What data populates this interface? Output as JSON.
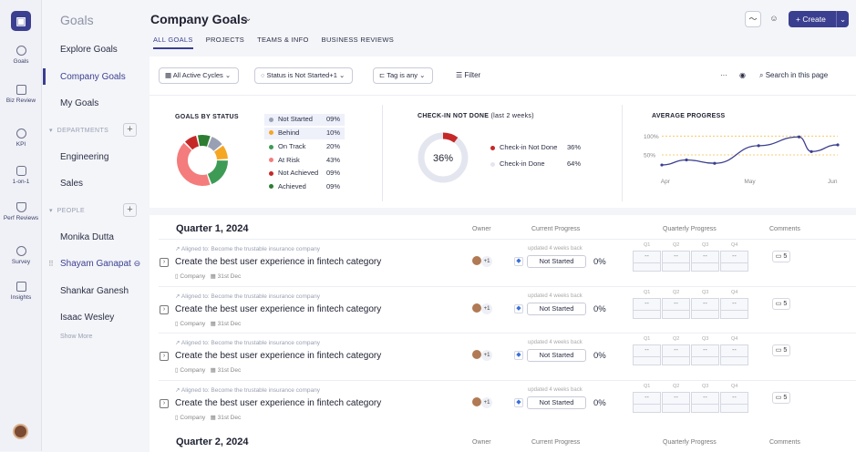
{
  "rail": {
    "logo_glyph": "▣",
    "items": [
      {
        "label": "Goals",
        "icon": "goals-icon"
      },
      {
        "label": "Biz Review",
        "icon": "biz-review-icon"
      },
      {
        "label": "KPI",
        "icon": "kpi-icon"
      },
      {
        "label": "1-on-1",
        "icon": "one-on-one-icon"
      },
      {
        "label": "Perf Reviews",
        "icon": "perf-reviews-icon"
      },
      {
        "label": "Survey",
        "icon": "survey-icon"
      },
      {
        "label": "Insights",
        "icon": "insights-icon"
      }
    ]
  },
  "sidebar": {
    "title": "Goals",
    "items": [
      "Explore Goals",
      "Company Goals",
      "My Goals"
    ],
    "departments_label": "DEPARTMENTS",
    "departments": [
      "Engineering",
      "Sales"
    ],
    "people_label": "PEOPLE",
    "people": [
      "Monika Dutta",
      "Shayam Ganapat",
      "Shankar Ganesh",
      "Isaac Wesley"
    ],
    "show_more": "Show More",
    "plus": "+"
  },
  "header": {
    "title": "Company Goals",
    "caret": "⌄",
    "tabs": [
      "ALL GOALS",
      "PROJECTS",
      "TEAMS & INFO",
      "BUSINESS REVIEWS"
    ],
    "create_label": "+ Create",
    "create_caret": "⌄"
  },
  "filters": {
    "cycles": "All Active Cycles ⌄",
    "status": "Status is Not Started+1 ⌄",
    "tag": "Tag is any ⌄",
    "filter": "Filter",
    "more": "···",
    "search": "Search in this page"
  },
  "goals_by_status": {
    "heading": "GOALS BY STATUS",
    "legend": [
      {
        "label": "Not Started",
        "value": "09%",
        "color": "#9aa0b3"
      },
      {
        "label": "Behind",
        "value": "10%",
        "color": "#f5a623"
      },
      {
        "label": "On Track",
        "value": "20%",
        "color": "#3e9b55"
      },
      {
        "label": "At Risk",
        "value": "43%",
        "color": "#f47c7c"
      },
      {
        "label": "Not Achieved",
        "value": "09%",
        "color": "#c62828"
      },
      {
        "label": "Achieved",
        "value": "09%",
        "color": "#2e7d32"
      }
    ]
  },
  "checkin": {
    "heading": "CHECK-IN NOT DONE",
    "subheading": "(last 2 weeks)",
    "center": "36%",
    "legend": [
      {
        "label": "Check-in Not Done",
        "value": "36%",
        "color": "#c62828"
      },
      {
        "label": "Check-in Done",
        "value": "64%",
        "color": "#e4e6ef"
      }
    ]
  },
  "chart_data": {
    "type": "line",
    "title": "AVERAGE PROGRESS",
    "y_tick_labels": [
      "100%",
      "50%"
    ],
    "x_tick_labels": [
      "Apr",
      "May",
      "Jun"
    ],
    "x": [
      0,
      0.14,
      0.3,
      0.55,
      0.78,
      0.85,
      1.0
    ],
    "values": [
      0.26,
      0.38,
      0.3,
      0.72,
      0.93,
      0.58,
      0.74
    ],
    "reference_lines": [
      0.95,
      0.5
    ],
    "color": "#3b3f8f",
    "reference_color": "#f5c04a"
  },
  "table": {
    "columns": {
      "owner": "Owner",
      "current_progress": "Current Progress",
      "quarterly_progress": "Quarterly Progress",
      "comments": "Comments"
    },
    "quarters": [
      "Q1",
      "Q2",
      "Q3",
      "Q4"
    ],
    "sections": [
      {
        "heading": "Quarter 1, 2024",
        "rows": [
          {
            "aligned": "Aligned to: Become the trustable insurance company",
            "title": "Create the best user experience in fintech category",
            "level": "Company",
            "date": "31st Dec",
            "owner_extra": "+1",
            "updated": "updated 4 weeks back",
            "status": "Not Started",
            "progress": "0%",
            "q": [
              "--",
              "--",
              "--",
              "--"
            ],
            "comments": "5"
          },
          {
            "aligned": "Aligned to: Become the trustable insurance company",
            "title": "Create the best user experience in fintech category",
            "level": "Company",
            "date": "31st Dec",
            "owner_extra": "+1",
            "updated": "updated 4 weeks back",
            "status": "Not Started",
            "progress": "0%",
            "q": [
              "--",
              "--",
              "--",
              "--"
            ],
            "comments": "5"
          },
          {
            "aligned": "Aligned to: Become the trustable insurance company",
            "title": "Create the best user experience in fintech category",
            "level": "Company",
            "date": "31st Dec",
            "owner_extra": "+1",
            "updated": "updated 4 weeks back",
            "status": "Not Started",
            "progress": "0%",
            "q": [
              "--",
              "--",
              "--",
              "--"
            ],
            "comments": "5"
          },
          {
            "aligned": "Aligned to: Become the trustable insurance company",
            "title": "Create the best user experience in fintech category",
            "level": "Company",
            "date": "31st Dec",
            "owner_extra": "+1",
            "updated": "updated 4 weeks back",
            "status": "Not Started",
            "progress": "0%",
            "q": [
              "--",
              "--",
              "--",
              "--"
            ],
            "comments": "5"
          }
        ]
      },
      {
        "heading": "Quarter 2, 2024",
        "rows": []
      }
    ]
  }
}
